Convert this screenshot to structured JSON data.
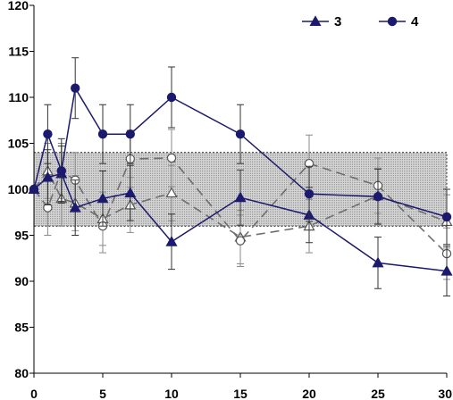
{
  "chart_data": {
    "type": "line",
    "title": "",
    "xlabel": "",
    "ylabel": "",
    "xlim": [
      0,
      30
    ],
    "ylim": [
      80,
      120
    ],
    "x_ticks": [
      0,
      5,
      10,
      15,
      20,
      25,
      30
    ],
    "y_ticks": [
      80,
      85,
      90,
      95,
      100,
      105,
      110,
      115,
      120
    ],
    "grid": false,
    "legend": {
      "placement": "top-right",
      "entries": [
        "3",
        "4"
      ]
    },
    "reference_band": {
      "y_low": 96,
      "y_high": 104
    },
    "series": [
      {
        "name": "3",
        "marker": "filled-triangle",
        "line": "solid",
        "color": "#1c1a6e",
        "points": [
          {
            "x": 0,
            "y": 100,
            "err": 0
          },
          {
            "x": 1,
            "y": 101.3,
            "err": 3.0
          },
          {
            "x": 2,
            "y": 101.7,
            "err": 3.0
          },
          {
            "x": 3,
            "y": 98.0,
            "err": 3.0
          },
          {
            "x": 5,
            "y": 99.0,
            "err": 3.0
          },
          {
            "x": 7,
            "y": 99.6,
            "err": 3.0
          },
          {
            "x": 10,
            "y": 94.3,
            "err": 3.0
          },
          {
            "x": 15,
            "y": 99.1,
            "err": 3.0
          },
          {
            "x": 20,
            "y": 97.2,
            "err": 3.0
          },
          {
            "x": 25,
            "y": 92.0,
            "err": 2.8
          },
          {
            "x": 30,
            "y": 91.1,
            "err": 2.7
          }
        ]
      },
      {
        "name": "4",
        "marker": "filled-circle",
        "line": "solid",
        "color": "#1c1a6e",
        "points": [
          {
            "x": 0,
            "y": 100,
            "err": 0
          },
          {
            "x": 1,
            "y": 106.0,
            "err": 3.2
          },
          {
            "x": 2,
            "y": 102.0,
            "err": 3.5
          },
          {
            "x": 3,
            "y": 111.0,
            "err": 3.3
          },
          {
            "x": 5,
            "y": 106.0,
            "err": 3.2
          },
          {
            "x": 7,
            "y": 106.0,
            "err": 3.2
          },
          {
            "x": 10,
            "y": 110.0,
            "err": 3.3
          },
          {
            "x": 15,
            "y": 106.0,
            "err": 3.2
          },
          {
            "x": 20,
            "y": 99.5,
            "err": 3.0
          },
          {
            "x": 25,
            "y": 99.2,
            "err": 3.0
          },
          {
            "x": 30,
            "y": 97.0,
            "err": 3.0
          }
        ]
      },
      {
        "name": "",
        "marker": "open-triangle",
        "line": "dashed",
        "color": "#6e6e6e",
        "points": [
          {
            "x": 0,
            "y": 100,
            "err": 0
          },
          {
            "x": 1,
            "y": 102.0,
            "err": 3.0
          },
          {
            "x": 2,
            "y": 99.0,
            "err": 3.0
          },
          {
            "x": 3,
            "y": 98.5,
            "err": 3.0
          },
          {
            "x": 5,
            "y": 96.8,
            "err": 2.9
          },
          {
            "x": 7,
            "y": 98.3,
            "err": 3.0
          },
          {
            "x": 10,
            "y": 99.6,
            "err": 3.0
          },
          {
            "x": 15,
            "y": 94.8,
            "err": 2.9
          },
          {
            "x": 20,
            "y": 96.0,
            "err": 2.9
          },
          {
            "x": 25,
            "y": 99.3,
            "err": 3.0
          },
          {
            "x": 30,
            "y": 96.5,
            "err": 2.9
          }
        ]
      },
      {
        "name": "",
        "marker": "open-circle",
        "line": "dashed",
        "color": "#6e6e6e",
        "points": [
          {
            "x": 0,
            "y": 100,
            "err": 0
          },
          {
            "x": 1,
            "y": 98.0,
            "err": 3.0
          },
          {
            "x": 2,
            "y": 102.0,
            "err": 3.0
          },
          {
            "x": 3,
            "y": 101.0,
            "err": 3.0
          },
          {
            "x": 5,
            "y": 96.0,
            "err": 2.9
          },
          {
            "x": 7,
            "y": 103.3,
            "err": 3.1
          },
          {
            "x": 10,
            "y": 103.4,
            "err": 3.1
          },
          {
            "x": 15,
            "y": 94.4,
            "err": 2.8
          },
          {
            "x": 20,
            "y": 102.8,
            "err": 3.1
          },
          {
            "x": 25,
            "y": 100.4,
            "err": 3.0
          },
          {
            "x": 30,
            "y": 93.0,
            "err": 2.8
          }
        ]
      }
    ]
  }
}
